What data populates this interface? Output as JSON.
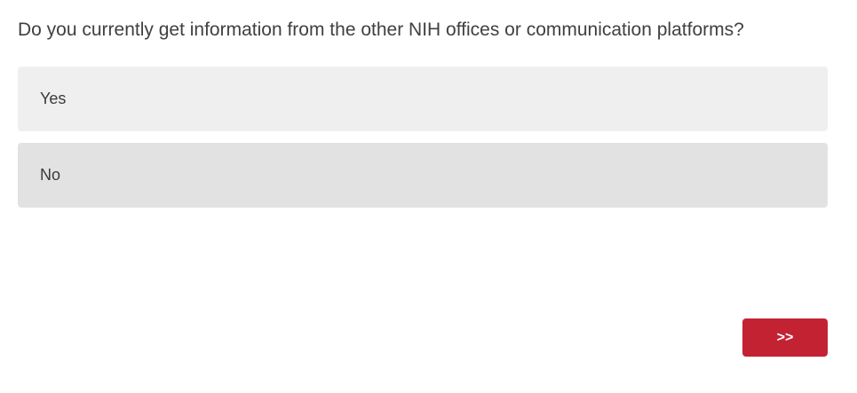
{
  "question": {
    "text": "Do you currently get information from the other NIH offices or communication platforms?"
  },
  "choices": [
    {
      "label": "Yes"
    },
    {
      "label": "No"
    }
  ],
  "next_button": {
    "label": ">>",
    "color": "#c32232"
  }
}
